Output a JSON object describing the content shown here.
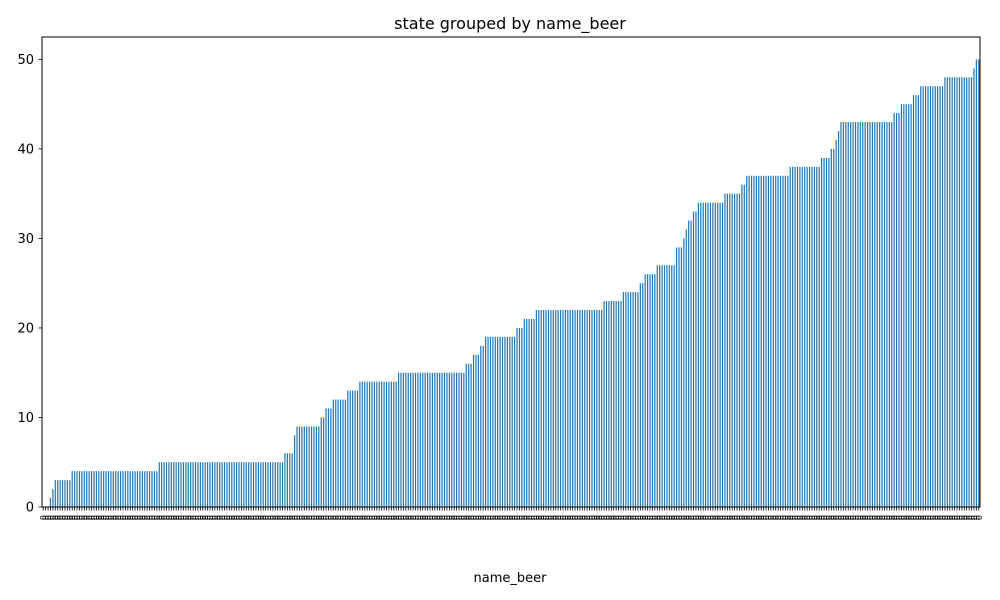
{
  "chart_data": {
    "type": "bar",
    "title": "state grouped by name_beer",
    "xlabel": "name_beer",
    "ylabel": "",
    "ylim": [
      0,
      52.5
    ],
    "yticks": [
      0,
      10,
      20,
      30,
      40,
      50
    ],
    "bar_color": "#1f77b4",
    "grid": false,
    "legend": "none",
    "category_label_placeholder": "0",
    "values": [
      0,
      0,
      0,
      1,
      2,
      3,
      3,
      3,
      3,
      3,
      3,
      3,
      4,
      4,
      4,
      4,
      4,
      4,
      4,
      4,
      4,
      4,
      4,
      4,
      4,
      4,
      4,
      4,
      4,
      4,
      4,
      4,
      4,
      4,
      4,
      4,
      4,
      4,
      4,
      4,
      4,
      4,
      4,
      4,
      4,
      4,
      4,
      4,
      5,
      5,
      5,
      5,
      5,
      5,
      5,
      5,
      5,
      5,
      5,
      5,
      5,
      5,
      5,
      5,
      5,
      5,
      5,
      5,
      5,
      5,
      5,
      5,
      5,
      5,
      5,
      5,
      5,
      5,
      5,
      5,
      5,
      5,
      5,
      5,
      5,
      5,
      5,
      5,
      5,
      5,
      5,
      5,
      5,
      5,
      5,
      5,
      5,
      5,
      5,
      5,
      6,
      6,
      6,
      6,
      8,
      9,
      9,
      9,
      9,
      9,
      9,
      9,
      9,
      9,
      9,
      10,
      10,
      11,
      11,
      11,
      12,
      12,
      12,
      12,
      12,
      12,
      13,
      13,
      13,
      13,
      13,
      14,
      14,
      14,
      14,
      14,
      14,
      14,
      14,
      14,
      14,
      14,
      14,
      14,
      14,
      14,
      14,
      15,
      15,
      15,
      15,
      15,
      15,
      15,
      15,
      15,
      15,
      15,
      15,
      15,
      15,
      15,
      15,
      15,
      15,
      15,
      15,
      15,
      15,
      15,
      15,
      15,
      15,
      15,
      15,
      16,
      16,
      16,
      17,
      17,
      17,
      18,
      18,
      19,
      19,
      19,
      19,
      19,
      19,
      19,
      19,
      19,
      19,
      19,
      19,
      19,
      20,
      20,
      20,
      21,
      21,
      21,
      21,
      21,
      22,
      22,
      22,
      22,
      22,
      22,
      22,
      22,
      22,
      22,
      22,
      22,
      22,
      22,
      22,
      22,
      22,
      22,
      22,
      22,
      22,
      22,
      22,
      22,
      22,
      22,
      22,
      22,
      23,
      23,
      23,
      23,
      23,
      23,
      23,
      23,
      24,
      24,
      24,
      24,
      24,
      24,
      24,
      25,
      25,
      26,
      26,
      26,
      26,
      26,
      27,
      27,
      27,
      27,
      27,
      27,
      27,
      27,
      29,
      29,
      29,
      30,
      31,
      32,
      32,
      33,
      33,
      34,
      34,
      34,
      34,
      34,
      34,
      34,
      34,
      34,
      34,
      34,
      35,
      35,
      35,
      35,
      35,
      35,
      35,
      36,
      36,
      37,
      37,
      37,
      37,
      37,
      37,
      37,
      37,
      37,
      37,
      37,
      37,
      37,
      37,
      37,
      37,
      37,
      37,
      38,
      38,
      38,
      38,
      38,
      38,
      38,
      38,
      38,
      38,
      38,
      38,
      38,
      39,
      39,
      39,
      39,
      40,
      40,
      41,
      42,
      43,
      43,
      43,
      43,
      43,
      43,
      43,
      43,
      43,
      43,
      43,
      43,
      43,
      43,
      43,
      43,
      43,
      43,
      43,
      43,
      43,
      43,
      44,
      44,
      44,
      45,
      45,
      45,
      45,
      45,
      46,
      46,
      46,
      47,
      47,
      47,
      47,
      47,
      47,
      47,
      47,
      47,
      47,
      48,
      48,
      48,
      48,
      48,
      48,
      48,
      48,
      48,
      48,
      48,
      48,
      49,
      50,
      50
    ]
  }
}
